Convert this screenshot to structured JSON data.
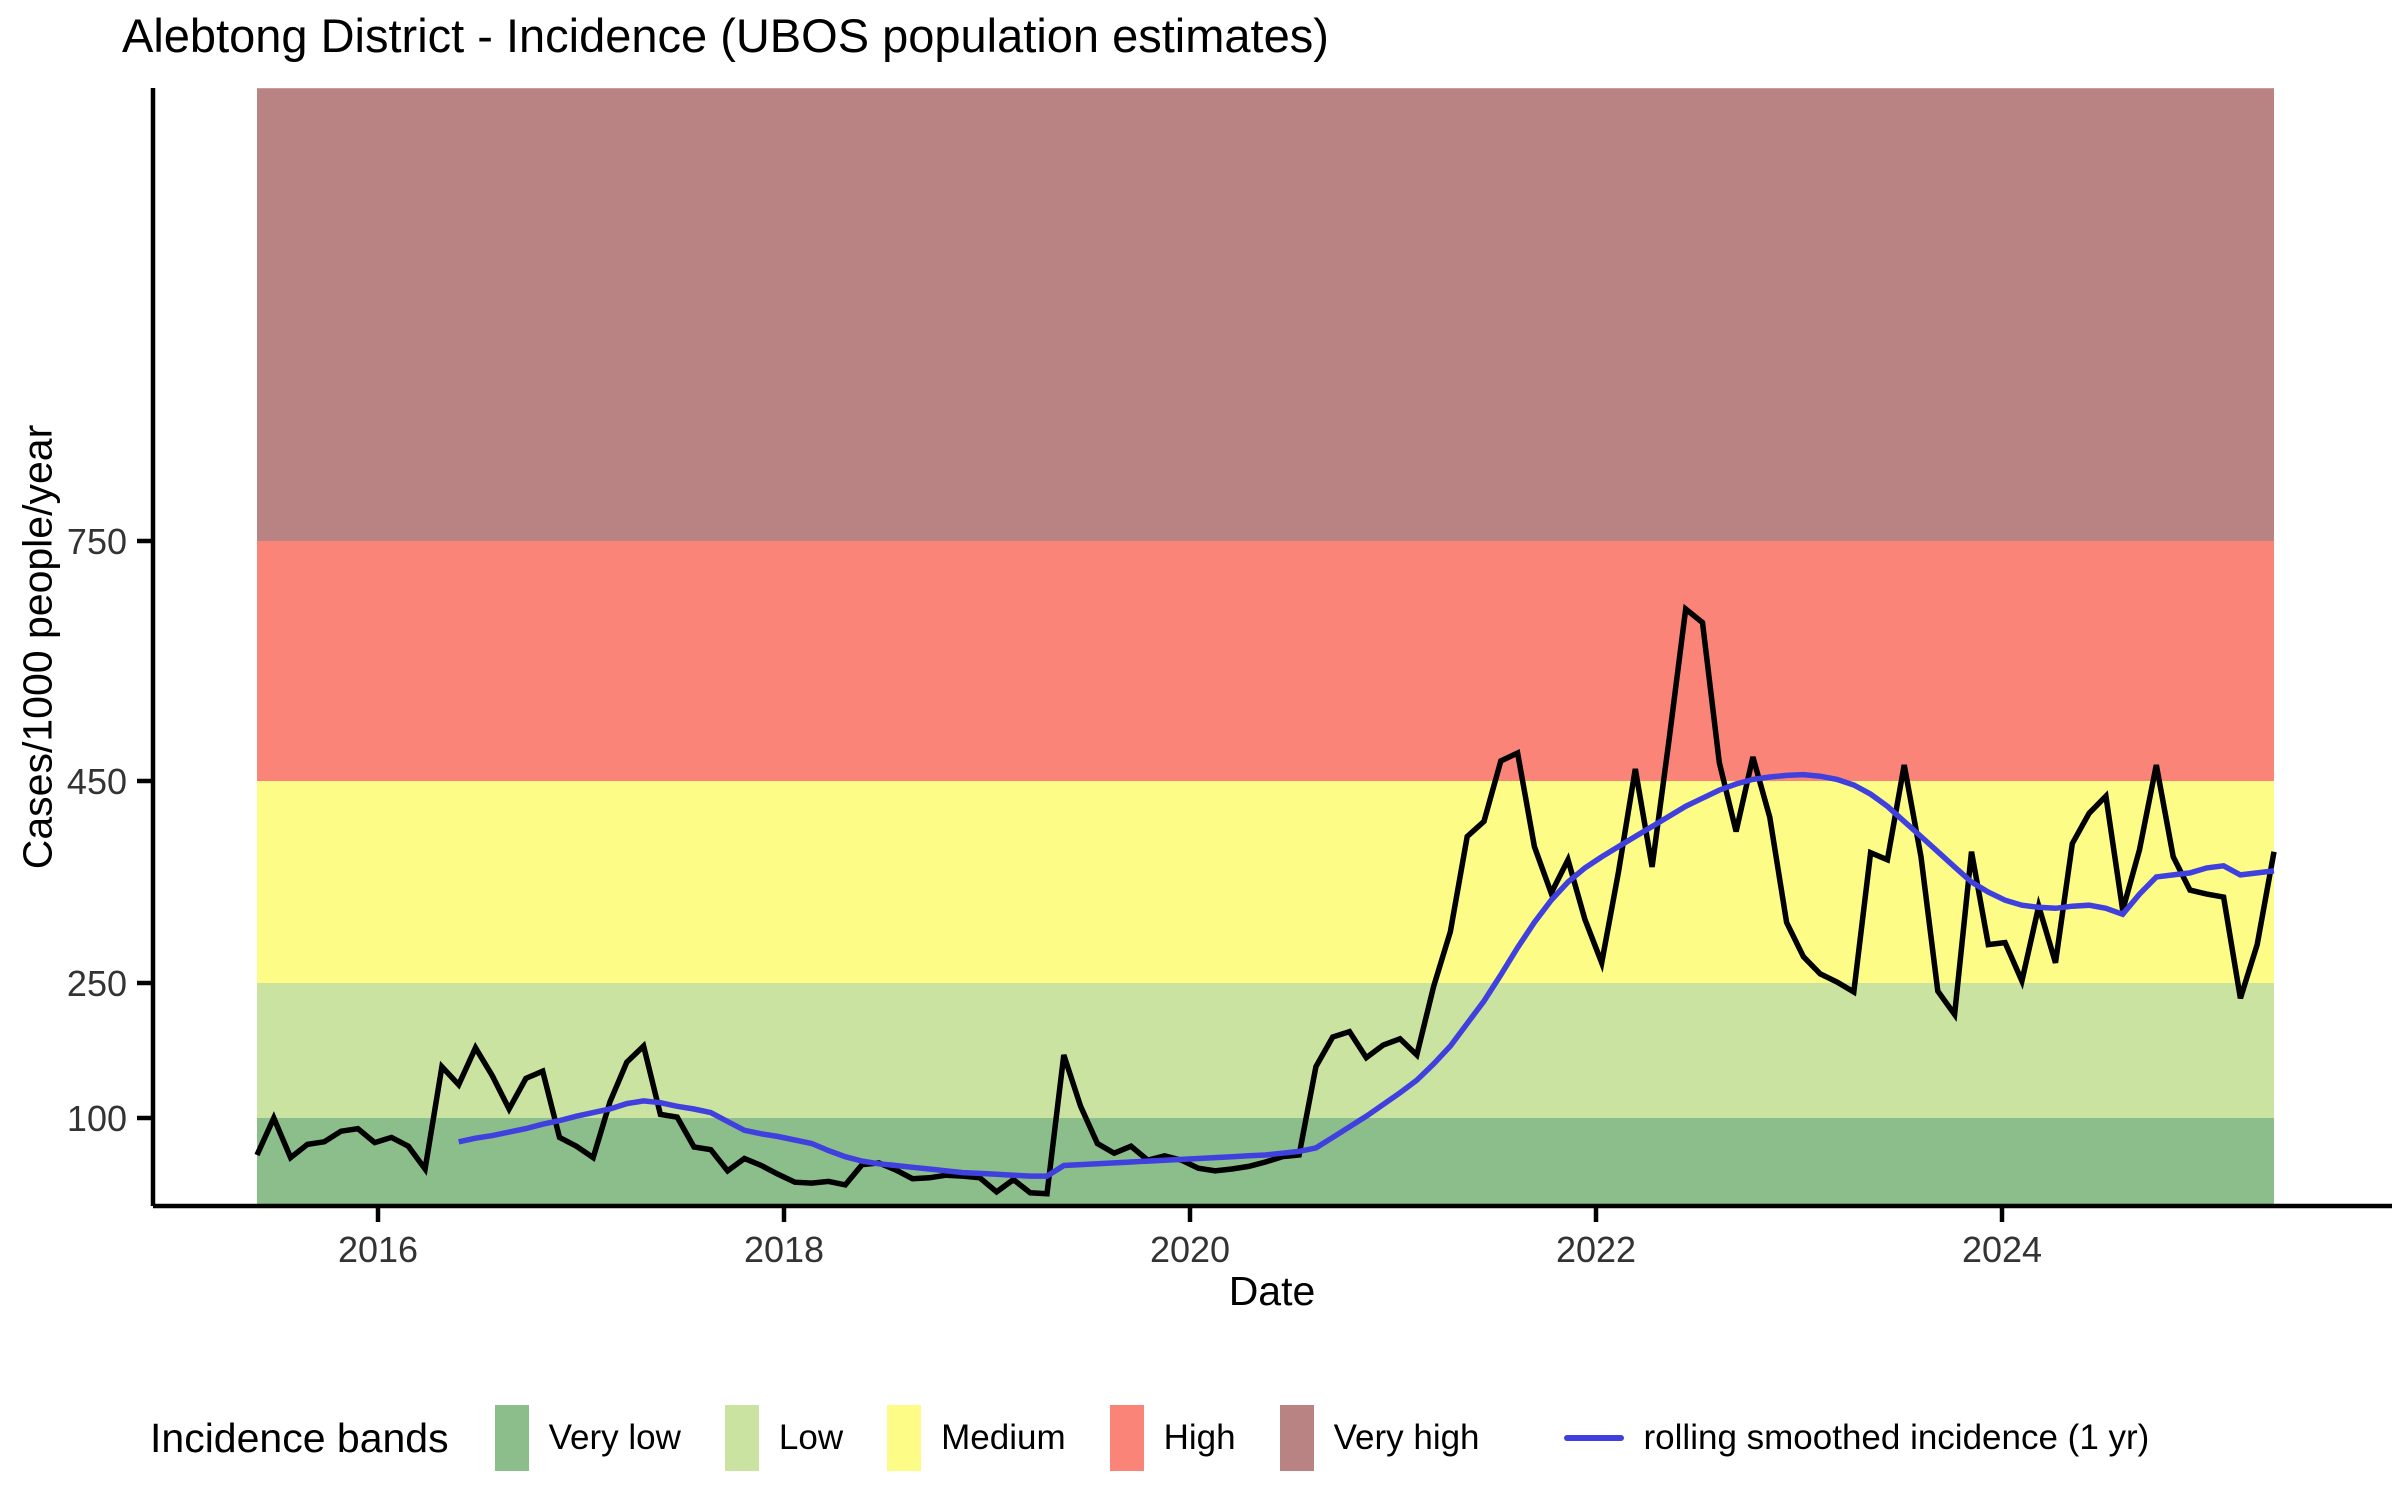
{
  "chart_data": {
    "type": "line",
    "title": "Alebtong District - Incidence (UBOS population estimates)",
    "xlabel": "Date",
    "ylabel": "Cases/1000 people/year",
    "x_ticks": [
      2016,
      2018,
      2020,
      2022,
      2024
    ],
    "y_ticks": [
      100,
      250,
      450,
      750
    ],
    "grid": false,
    "legend_position": "bottom",
    "bands": [
      {
        "name": "Very low",
        "range": [
          0,
          100
        ],
        "color": "#8CBE8C"
      },
      {
        "name": "Low",
        "range": [
          100,
          250
        ],
        "color": "#CBE3A0"
      },
      {
        "name": "Medium",
        "range": [
          250,
          450
        ],
        "color": "#FCFC87"
      },
      {
        "name": "High",
        "range": [
          450,
          750
        ],
        "color": "#FB8478"
      },
      {
        "name": "Very high",
        "range": [
          750,
          1316
        ],
        "color": "#BA8383"
      }
    ],
    "series": [
      {
        "name": "monthly incidence",
        "color": "#000000",
        "start": "2015-05",
        "step_months": 1,
        "values": [
          58,
          100,
          55,
          70,
          73,
          85,
          88,
          72,
          78,
          68,
          42,
          157,
          137,
          178,
          147,
          110,
          144,
          152,
          78,
          68,
          55,
          118,
          162,
          180,
          104,
          101,
          67,
          64,
          40,
          54,
          46,
          36,
          27,
          26,
          28,
          24,
          47,
          49,
          41,
          31,
          32,
          35,
          34,
          32,
          16,
          30,
          15,
          14,
          170,
          113,
          71,
          60,
          68,
          52,
          57,
          52,
          43,
          40,
          42,
          45,
          50,
          56,
          58,
          157,
          190,
          196,
          167,
          181,
          188,
          170,
          246,
          301,
          395,
          410,
          475,
          485,
          385,
          339,
          372,
          313,
          270,
          360,
          465,
          365,
          500,
          665,
          648,
          473,
          400,
          480,
          414,
          310,
          276,
          259,
          251,
          240,
          379,
          372,
          470,
          375,
          241,
          215,
          380,
          288,
          290,
          252,
          326,
          270,
          388,
          418,
          435,
          322,
          382,
          470,
          375,
          342,
          338,
          335,
          233,
          288,
          380
        ]
      },
      {
        "name": "rolling smoothed incidence (1 yr)",
        "color": "#4040DF",
        "start": "2016-05",
        "step_months": 1,
        "start_offset_months": 12,
        "values": [
          73,
          77,
          80,
          84,
          88,
          93,
          97,
          102,
          106,
          110,
          116,
          119,
          117,
          113,
          110,
          106,
          96,
          86,
          82,
          79,
          75,
          71,
          63,
          56,
          51,
          48,
          46,
          44,
          42,
          40,
          38,
          37,
          36,
          35,
          34,
          34,
          46,
          47,
          48,
          49,
          50,
          51,
          52,
          53,
          54,
          55,
          56,
          57,
          58,
          60,
          62,
          66,
          78,
          90,
          102,
          115,
          128,
          142,
          160,
          180,
          205,
          230,
          258,
          285,
          310,
          332,
          350,
          364,
          375,
          385,
          395,
          405,
          415,
          425,
          433,
          441,
          447,
          452,
          455,
          457,
          458,
          456,
          452,
          446,
          437,
          425,
          410,
          395,
          380,
          365,
          350,
          340,
          332,
          327,
          325,
          324,
          326,
          327,
          324,
          318,
          338,
          355,
          357,
          359,
          364,
          366,
          357,
          359,
          361
        ]
      }
    ]
  },
  "legend": {
    "title": "Incidence bands",
    "items": [
      "Very low",
      "Low",
      "Medium",
      "High",
      "Very high"
    ],
    "line_item_label": "rolling smoothed incidence (1 yr)"
  }
}
